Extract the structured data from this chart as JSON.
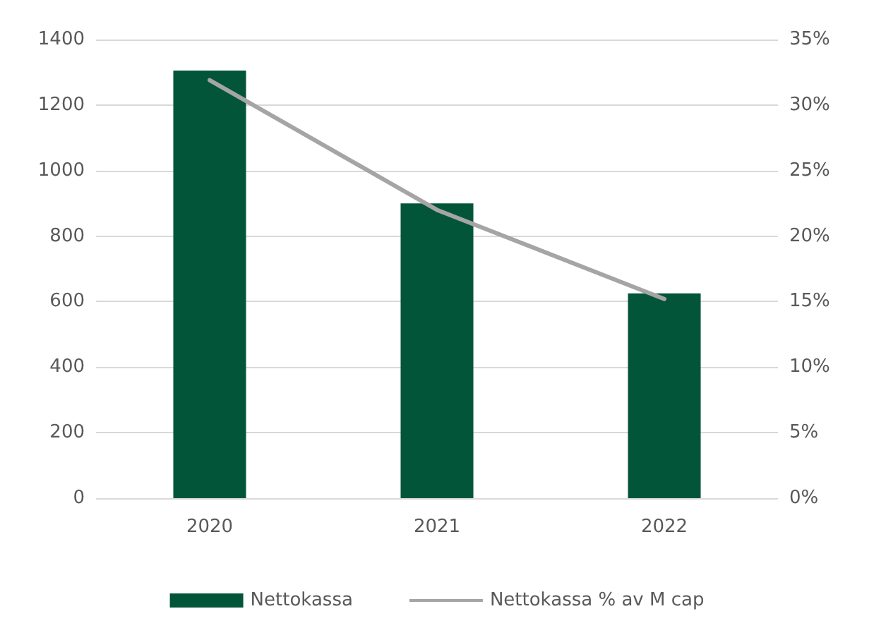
{
  "chart_data": {
    "type": "bar",
    "categories": [
      "2020",
      "2021",
      "2022"
    ],
    "series": [
      {
        "name": "Nettokassa",
        "color": "#03553a",
        "values": [
          1305,
          900,
          625
        ]
      },
      {
        "name": "Nettokassa % av M cap",
        "type": "line",
        "axis": "y2",
        "color": "#a5a5a5",
        "values": [
          31.9,
          22.0,
          15.2
        ]
      }
    ],
    "ylim": [
      0,
      1400
    ],
    "yticks": [
      0,
      200,
      400,
      600,
      800,
      1000,
      1200,
      1400
    ],
    "y2lim": [
      0,
      35
    ],
    "y2ticks": [
      {
        "value": 0,
        "label": "0%"
      },
      {
        "value": 5,
        "label": "5%"
      },
      {
        "value": 10,
        "label": "10%"
      },
      {
        "value": 15,
        "label": "15%"
      },
      {
        "value": 20,
        "label": "20%"
      },
      {
        "value": 25,
        "label": "25%"
      },
      {
        "value": 30,
        "label": "30%"
      },
      {
        "value": 35,
        "label": "35%"
      }
    ],
    "grid": "y",
    "legend": "bottom",
    "marker": "none"
  }
}
